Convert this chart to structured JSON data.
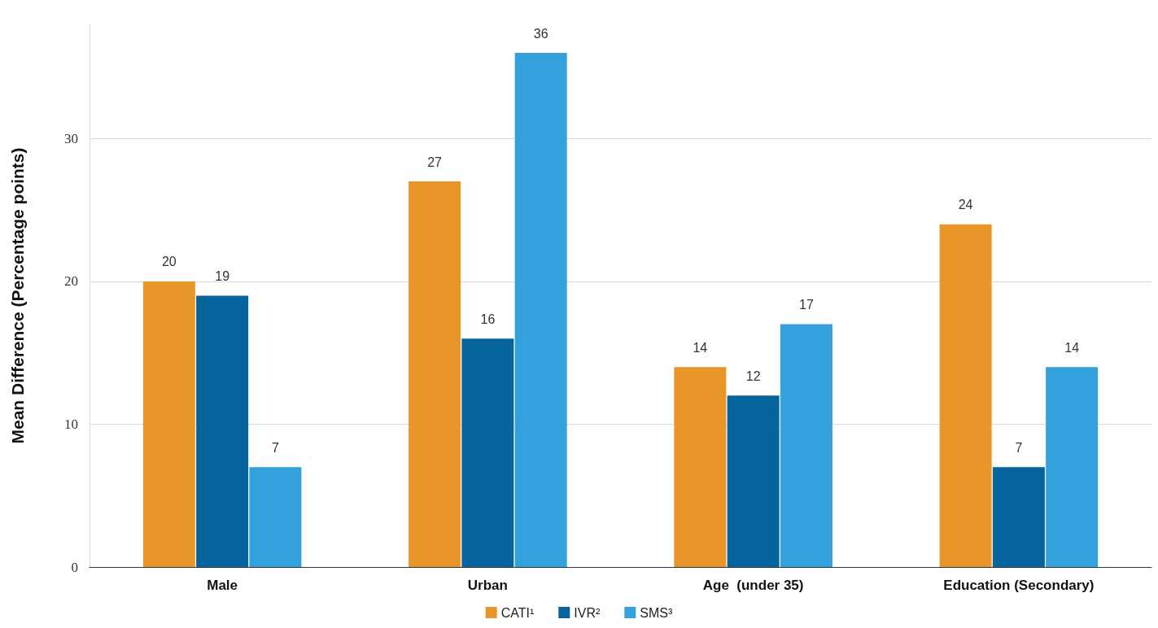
{
  "chart_data": {
    "type": "bar",
    "ylabel": "Mean Difference (Percentage points)",
    "categories": [
      "Male",
      "Urban",
      "Age  (under 35)",
      "Education (Secondary)"
    ],
    "series": [
      {
        "name": "CATI¹",
        "color": "#e8952a",
        "values": [
          20,
          27,
          14,
          24
        ]
      },
      {
        "name": "IVR²",
        "color": "#05649c",
        "values": [
          19,
          16,
          12,
          7
        ]
      },
      {
        "name": "SMS³",
        "color": "#33a1dc",
        "values": [
          7,
          36,
          17,
          14
        ]
      }
    ],
    "ylim": [
      0,
      38
    ],
    "yticks": [
      0,
      10,
      20,
      30
    ],
    "grid": "y",
    "legend": "bottom",
    "data_labels": true
  }
}
